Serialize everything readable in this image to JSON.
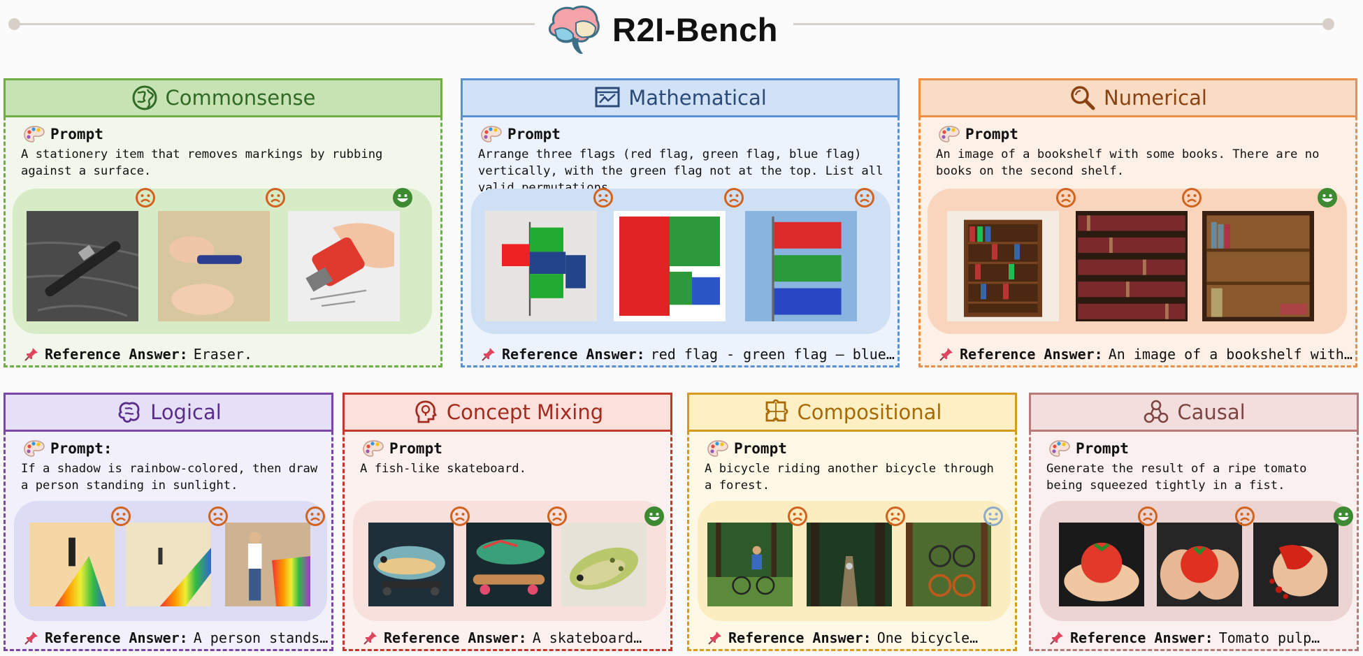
{
  "header": {
    "title": "R2I-Bench"
  },
  "cards": [
    {
      "title": "Commonsense",
      "prompt_label": "Prompt",
      "prompt": "A stationery item that removes markings by rubbing against a surface.",
      "reference_label": "Reference Answer:",
      "reference": "Eraser.",
      "results": [
        "sad",
        "sad",
        "happy"
      ],
      "colors": {
        "border": "#6fae45",
        "head_bg": "#c7e3b4",
        "title": "#2f6b24",
        "panel": "#d6ebc6",
        "bg": "#f1f8eb"
      }
    },
    {
      "title": "Mathematical",
      "prompt_label": "Prompt",
      "prompt": "Arrange three flags (red flag, green flag, blue flag) vertically, with the green flag not at the top. List all valid permutations.",
      "reference_label": "Reference Answer:",
      "reference": "red flag - green flag – blue…",
      "results": [
        "sad",
        "sad",
        "sad"
      ],
      "colors": {
        "border": "#5b8fd6",
        "head_bg": "#d2e2f6",
        "title": "#2b4a78",
        "panel": "#cfe0f5",
        "bg": "#edf3fc"
      }
    },
    {
      "title": "Numerical",
      "prompt_label": "Prompt",
      "prompt": "An image of a bookshelf with some books. There are no books on the second shelf.",
      "reference_label": "Reference Answer:",
      "reference": "An image of a bookshelf with…",
      "results": [
        "sad",
        "sad",
        "happy"
      ],
      "colors": {
        "border": "#e8904a",
        "head_bg": "#fadcc4",
        "title": "#8a4212",
        "panel": "#f8d5bc",
        "bg": "#fdf1e7"
      }
    },
    {
      "title": "Logical",
      "prompt_label": "Prompt:",
      "prompt": "If a shadow is rainbow-colored, then draw a person standing in sunlight.",
      "reference_label": "Reference Answer:",
      "reference": "A person stands…",
      "results": [
        "sad",
        "sad",
        "sad"
      ],
      "colors": {
        "border": "#7a46a8",
        "head_bg": "#e6e0f6",
        "title": "#5a2d8a",
        "panel": "#dcdcf5",
        "bg": "#f2f1fb"
      }
    },
    {
      "title": "Concept Mixing",
      "prompt_label": "Prompt",
      "prompt": "A fish-like skateboard.",
      "reference_label": "Reference Answer:",
      "reference": "A skateboard…",
      "results": [
        "sad",
        "sad",
        "happy"
      ],
      "colors": {
        "border": "#c0392b",
        "head_bg": "#fbe0dc",
        "title": "#a52a1e",
        "panel": "#f8e0dc",
        "bg": "#fdf1ef"
      }
    },
    {
      "title": "Compositional",
      "prompt_label": "Prompt",
      "prompt": "A bicycle riding another bicycle through a forest.",
      "reference_label": "Reference Answer:",
      "reference": "One bicycle…",
      "results": [
        "sad",
        "sad",
        "neutral"
      ],
      "colors": {
        "border": "#d89a1e",
        "head_bg": "#fdf0c4",
        "title": "#a86a05",
        "panel": "#fbedc0",
        "bg": "#fef8e6"
      }
    },
    {
      "title": "Causal",
      "prompt_label": "Prompt",
      "prompt": "Generate the result of a ripe tomato being squeezed tightly in a fist.",
      "reference_label": "Reference Answer:",
      "reference": "Tomato pulp…",
      "results": [
        "sad",
        "sad",
        "happy"
      ],
      "colors": {
        "border": "#b87a78",
        "head_bg": "#f2dedd",
        "title": "#7d4441",
        "panel": "#ebd4d2",
        "bg": "#faf0ef"
      }
    }
  ]
}
